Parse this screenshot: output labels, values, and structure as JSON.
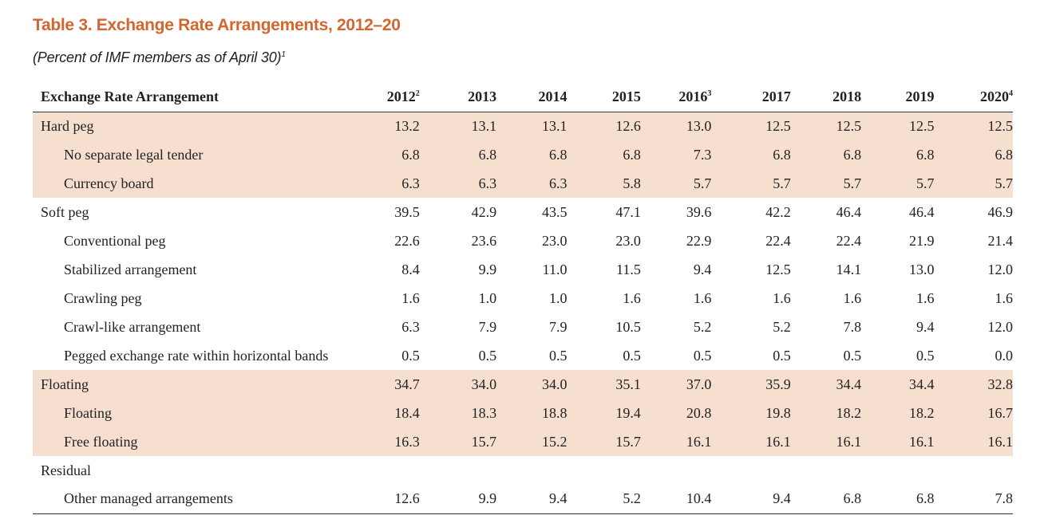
{
  "title": "Table 3.  Exchange Rate Arrangements, 2012–20",
  "subtitle": "(Percent of IMF members as of April 30)",
  "subtitle_note": "1",
  "header": {
    "label": "Exchange Rate Arrangement",
    "years": [
      {
        "year": "2012",
        "note": "2"
      },
      {
        "year": "2013",
        "note": ""
      },
      {
        "year": "2014",
        "note": ""
      },
      {
        "year": "2015",
        "note": ""
      },
      {
        "year": "2016",
        "note": "3"
      },
      {
        "year": "2017",
        "note": ""
      },
      {
        "year": "2018",
        "note": ""
      },
      {
        "year": "2019",
        "note": ""
      },
      {
        "year": "2020",
        "note": "4"
      }
    ]
  },
  "rows": [
    {
      "label": "Hard peg",
      "values": [
        "13.2",
        "13.1",
        "13.1",
        "12.6",
        "13.0",
        "12.5",
        "12.5",
        "12.5",
        "12.5"
      ]
    },
    {
      "label": "No separate legal tender",
      "values": [
        "6.8",
        "6.8",
        "6.8",
        "6.8",
        "7.3",
        "6.8",
        "6.8",
        "6.8",
        "6.8"
      ]
    },
    {
      "label": "Currency board",
      "values": [
        "6.3",
        "6.3",
        "6.3",
        "5.8",
        "5.7",
        "5.7",
        "5.7",
        "5.7",
        "5.7"
      ]
    },
    {
      "label": "Soft peg",
      "values": [
        "39.5",
        "42.9",
        "43.5",
        "47.1",
        "39.6",
        "42.2",
        "46.4",
        "46.4",
        "46.9"
      ]
    },
    {
      "label": "Conventional peg",
      "values": [
        "22.6",
        "23.6",
        "23.0",
        "23.0",
        "22.9",
        "22.4",
        "22.4",
        "21.9",
        "21.4"
      ]
    },
    {
      "label": "Stabilized arrangement",
      "values": [
        "8.4",
        "9.9",
        "11.0",
        "11.5",
        "9.4",
        "12.5",
        "14.1",
        "13.0",
        "12.0"
      ]
    },
    {
      "label": "Crawling peg",
      "values": [
        "1.6",
        "1.0",
        "1.0",
        "1.6",
        "1.6",
        "1.6",
        "1.6",
        "1.6",
        "1.6"
      ]
    },
    {
      "label": "Crawl-like arrangement",
      "values": [
        "6.3",
        "7.9",
        "7.9",
        "10.5",
        "5.2",
        "5.2",
        "7.8",
        "9.4",
        "12.0"
      ]
    },
    {
      "label": "Pegged exchange rate within horizontal bands",
      "values": [
        "0.5",
        "0.5",
        "0.5",
        "0.5",
        "0.5",
        "0.5",
        "0.5",
        "0.5",
        "0.0"
      ]
    },
    {
      "label": "Floating",
      "values": [
        "34.7",
        "34.0",
        "34.0",
        "35.1",
        "37.0",
        "35.9",
        "34.4",
        "34.4",
        "32.8"
      ]
    },
    {
      "label": "Floating",
      "values": [
        "18.4",
        "18.3",
        "18.8",
        "19.4",
        "20.8",
        "19.8",
        "18.2",
        "18.2",
        "16.7"
      ]
    },
    {
      "label": "Free floating",
      "values": [
        "16.3",
        "15.7",
        "15.2",
        "15.7",
        "16.1",
        "16.1",
        "16.1",
        "16.1",
        "16.1"
      ]
    },
    {
      "label": "Residual",
      "values": [
        "",
        "",
        "",
        "",
        "",
        "",
        "",
        "",
        ""
      ]
    },
    {
      "label": "Other managed arrangements",
      "values": [
        "12.6",
        "9.9",
        "9.4",
        "5.2",
        "10.4",
        "9.4",
        "6.8",
        "6.8",
        "7.8"
      ]
    }
  ],
  "colors": {
    "title": "#d2662e",
    "shade": "#f7dfcf"
  }
}
